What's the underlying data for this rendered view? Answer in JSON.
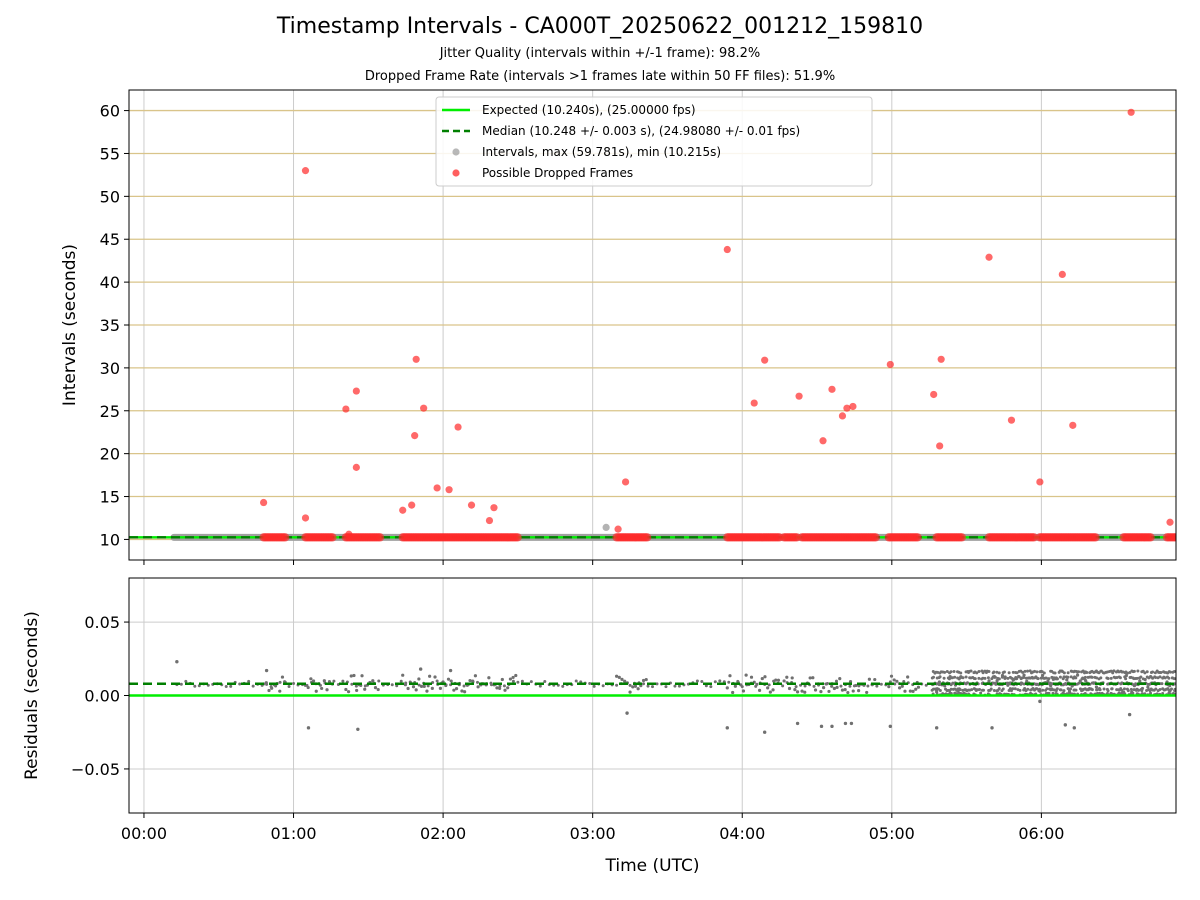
{
  "figure": {
    "title": "Timestamp Intervals - CA000T_20250622_001212_159810",
    "subtitle_1": "Jitter Quality (intervals within +/-1 frame): 98.2%",
    "subtitle_2": "Dropped Frame Rate (intervals >1 frames late within 50 FF files): 51.9%"
  },
  "colors": {
    "expected": "#00ee00",
    "median": "#007f00",
    "intervals": "#a0a0a0",
    "dropped": "#ff2a2a",
    "residuals": "#707070",
    "top_grid": "#d9c48a",
    "grid": "#cccccc"
  },
  "chart_data": [
    {
      "type": "scatter",
      "panel": "intervals",
      "xlabel": "",
      "ylabel": "Intervals (seconds)",
      "x_unit": "hours since 00:00 UTC",
      "xlim": [
        -0.1,
        6.9
      ],
      "ylim": [
        7.6,
        62.4
      ],
      "x_ticks": [
        0,
        1,
        2,
        3,
        4,
        5,
        6
      ],
      "x_tick_labels": [
        "00:00",
        "01:00",
        "02:00",
        "03:00",
        "04:00",
        "05:00",
        "06:00"
      ],
      "y_ticks": [
        10,
        15,
        20,
        25,
        30,
        35,
        40,
        45,
        50,
        55,
        60
      ],
      "y_tick_labels": [
        "10",
        "15",
        "20",
        "25",
        "30",
        "35",
        "40",
        "45",
        "50",
        "55",
        "60"
      ],
      "grid": true,
      "legend_position": "top-center",
      "legend": [
        {
          "label": "Expected (10.240s), (25.00000 fps)",
          "kind": "solid-line",
          "color": "#00ee00"
        },
        {
          "label": "Median (10.248 +/- 0.003 s), (24.98080 +/- 0.01 fps)",
          "kind": "dashed-line",
          "color": "#007f00"
        },
        {
          "label": "Intervals, max (59.781s), min (10.215s)",
          "kind": "dot",
          "color": "#a0a0a0"
        },
        {
          "label": "Possible Dropped Frames",
          "kind": "dot",
          "color": "#ff2a2a"
        }
      ],
      "expected": 10.24,
      "median": 10.248,
      "interval_segments": [
        [
          0.2,
          6.9
        ]
      ],
      "dropped_segments": [
        [
          0.8,
          0.95
        ],
        [
          1.08,
          1.27
        ],
        [
          1.35,
          1.58
        ],
        [
          1.73,
          2.5
        ],
        [
          3.16,
          3.37
        ],
        [
          3.9,
          4.25
        ],
        [
          4.28,
          4.37
        ],
        [
          4.4,
          4.9
        ],
        [
          4.98,
          5.18
        ],
        [
          5.3,
          5.47
        ],
        [
          5.65,
          5.95
        ],
        [
          5.99,
          6.37
        ],
        [
          6.55,
          6.73
        ],
        [
          6.84,
          6.9
        ]
      ],
      "intervals_points": [
        [
          3.09,
          11.4
        ]
      ],
      "dropped_points": [
        [
          0.8,
          14.3
        ],
        [
          1.08,
          53.0
        ],
        [
          1.08,
          12.5
        ],
        [
          1.35,
          25.2
        ],
        [
          1.37,
          10.6
        ],
        [
          1.42,
          27.3
        ],
        [
          1.42,
          18.4
        ],
        [
          1.73,
          13.4
        ],
        [
          1.79,
          14.0
        ],
        [
          1.81,
          22.1
        ],
        [
          1.82,
          31.0
        ],
        [
          1.87,
          25.3
        ],
        [
          1.96,
          16.0
        ],
        [
          2.04,
          15.8
        ],
        [
          2.1,
          23.1
        ],
        [
          2.19,
          14.0
        ],
        [
          2.31,
          12.2
        ],
        [
          2.34,
          13.7
        ],
        [
          3.17,
          11.2
        ],
        [
          3.22,
          16.7
        ],
        [
          3.9,
          43.8
        ],
        [
          4.08,
          25.9
        ],
        [
          4.15,
          30.9
        ],
        [
          4.38,
          26.7
        ],
        [
          4.54,
          21.5
        ],
        [
          4.6,
          27.5
        ],
        [
          4.67,
          24.4
        ],
        [
          4.7,
          25.3
        ],
        [
          4.74,
          25.5
        ],
        [
          4.99,
          30.4
        ],
        [
          5.28,
          26.9
        ],
        [
          5.32,
          20.9
        ],
        [
          5.33,
          31.0
        ],
        [
          5.65,
          42.9
        ],
        [
          5.8,
          23.9
        ],
        [
          5.99,
          16.7
        ],
        [
          6.14,
          40.9
        ],
        [
          6.21,
          23.3
        ],
        [
          6.6,
          59.8
        ],
        [
          6.86,
          12.0
        ]
      ]
    },
    {
      "type": "scatter",
      "panel": "residuals",
      "xlabel": "Time (UTC)",
      "ylabel": "Residuals (seconds)",
      "xlim": [
        -0.1,
        6.9
      ],
      "ylim": [
        -0.08,
        0.08
      ],
      "y_ticks": [
        0.05,
        0.0,
        -0.05
      ],
      "y_tick_labels": [
        "0.05",
        "0.00",
        "−0.05"
      ],
      "grid": true,
      "expected_residual": 0.0,
      "median_residual": 0.008,
      "dense_region": [
        5.27,
        6.9
      ],
      "outlier_points": [
        [
          0.22,
          0.023
        ],
        [
          0.82,
          0.017
        ],
        [
          1.1,
          -0.022
        ],
        [
          1.43,
          -0.023
        ],
        [
          1.85,
          0.018
        ],
        [
          2.05,
          0.017
        ],
        [
          3.23,
          -0.012
        ],
        [
          3.9,
          -0.022
        ],
        [
          4.15,
          -0.025
        ],
        [
          4.37,
          -0.019
        ],
        [
          4.53,
          -0.021
        ],
        [
          4.6,
          -0.021
        ],
        [
          4.69,
          -0.019
        ],
        [
          4.73,
          -0.019
        ],
        [
          4.99,
          -0.021
        ],
        [
          5.3,
          -0.022
        ],
        [
          5.67,
          -0.022
        ],
        [
          5.99,
          -0.004
        ],
        [
          6.16,
          -0.02
        ],
        [
          6.22,
          -0.022
        ],
        [
          6.59,
          -0.013
        ]
      ]
    }
  ]
}
